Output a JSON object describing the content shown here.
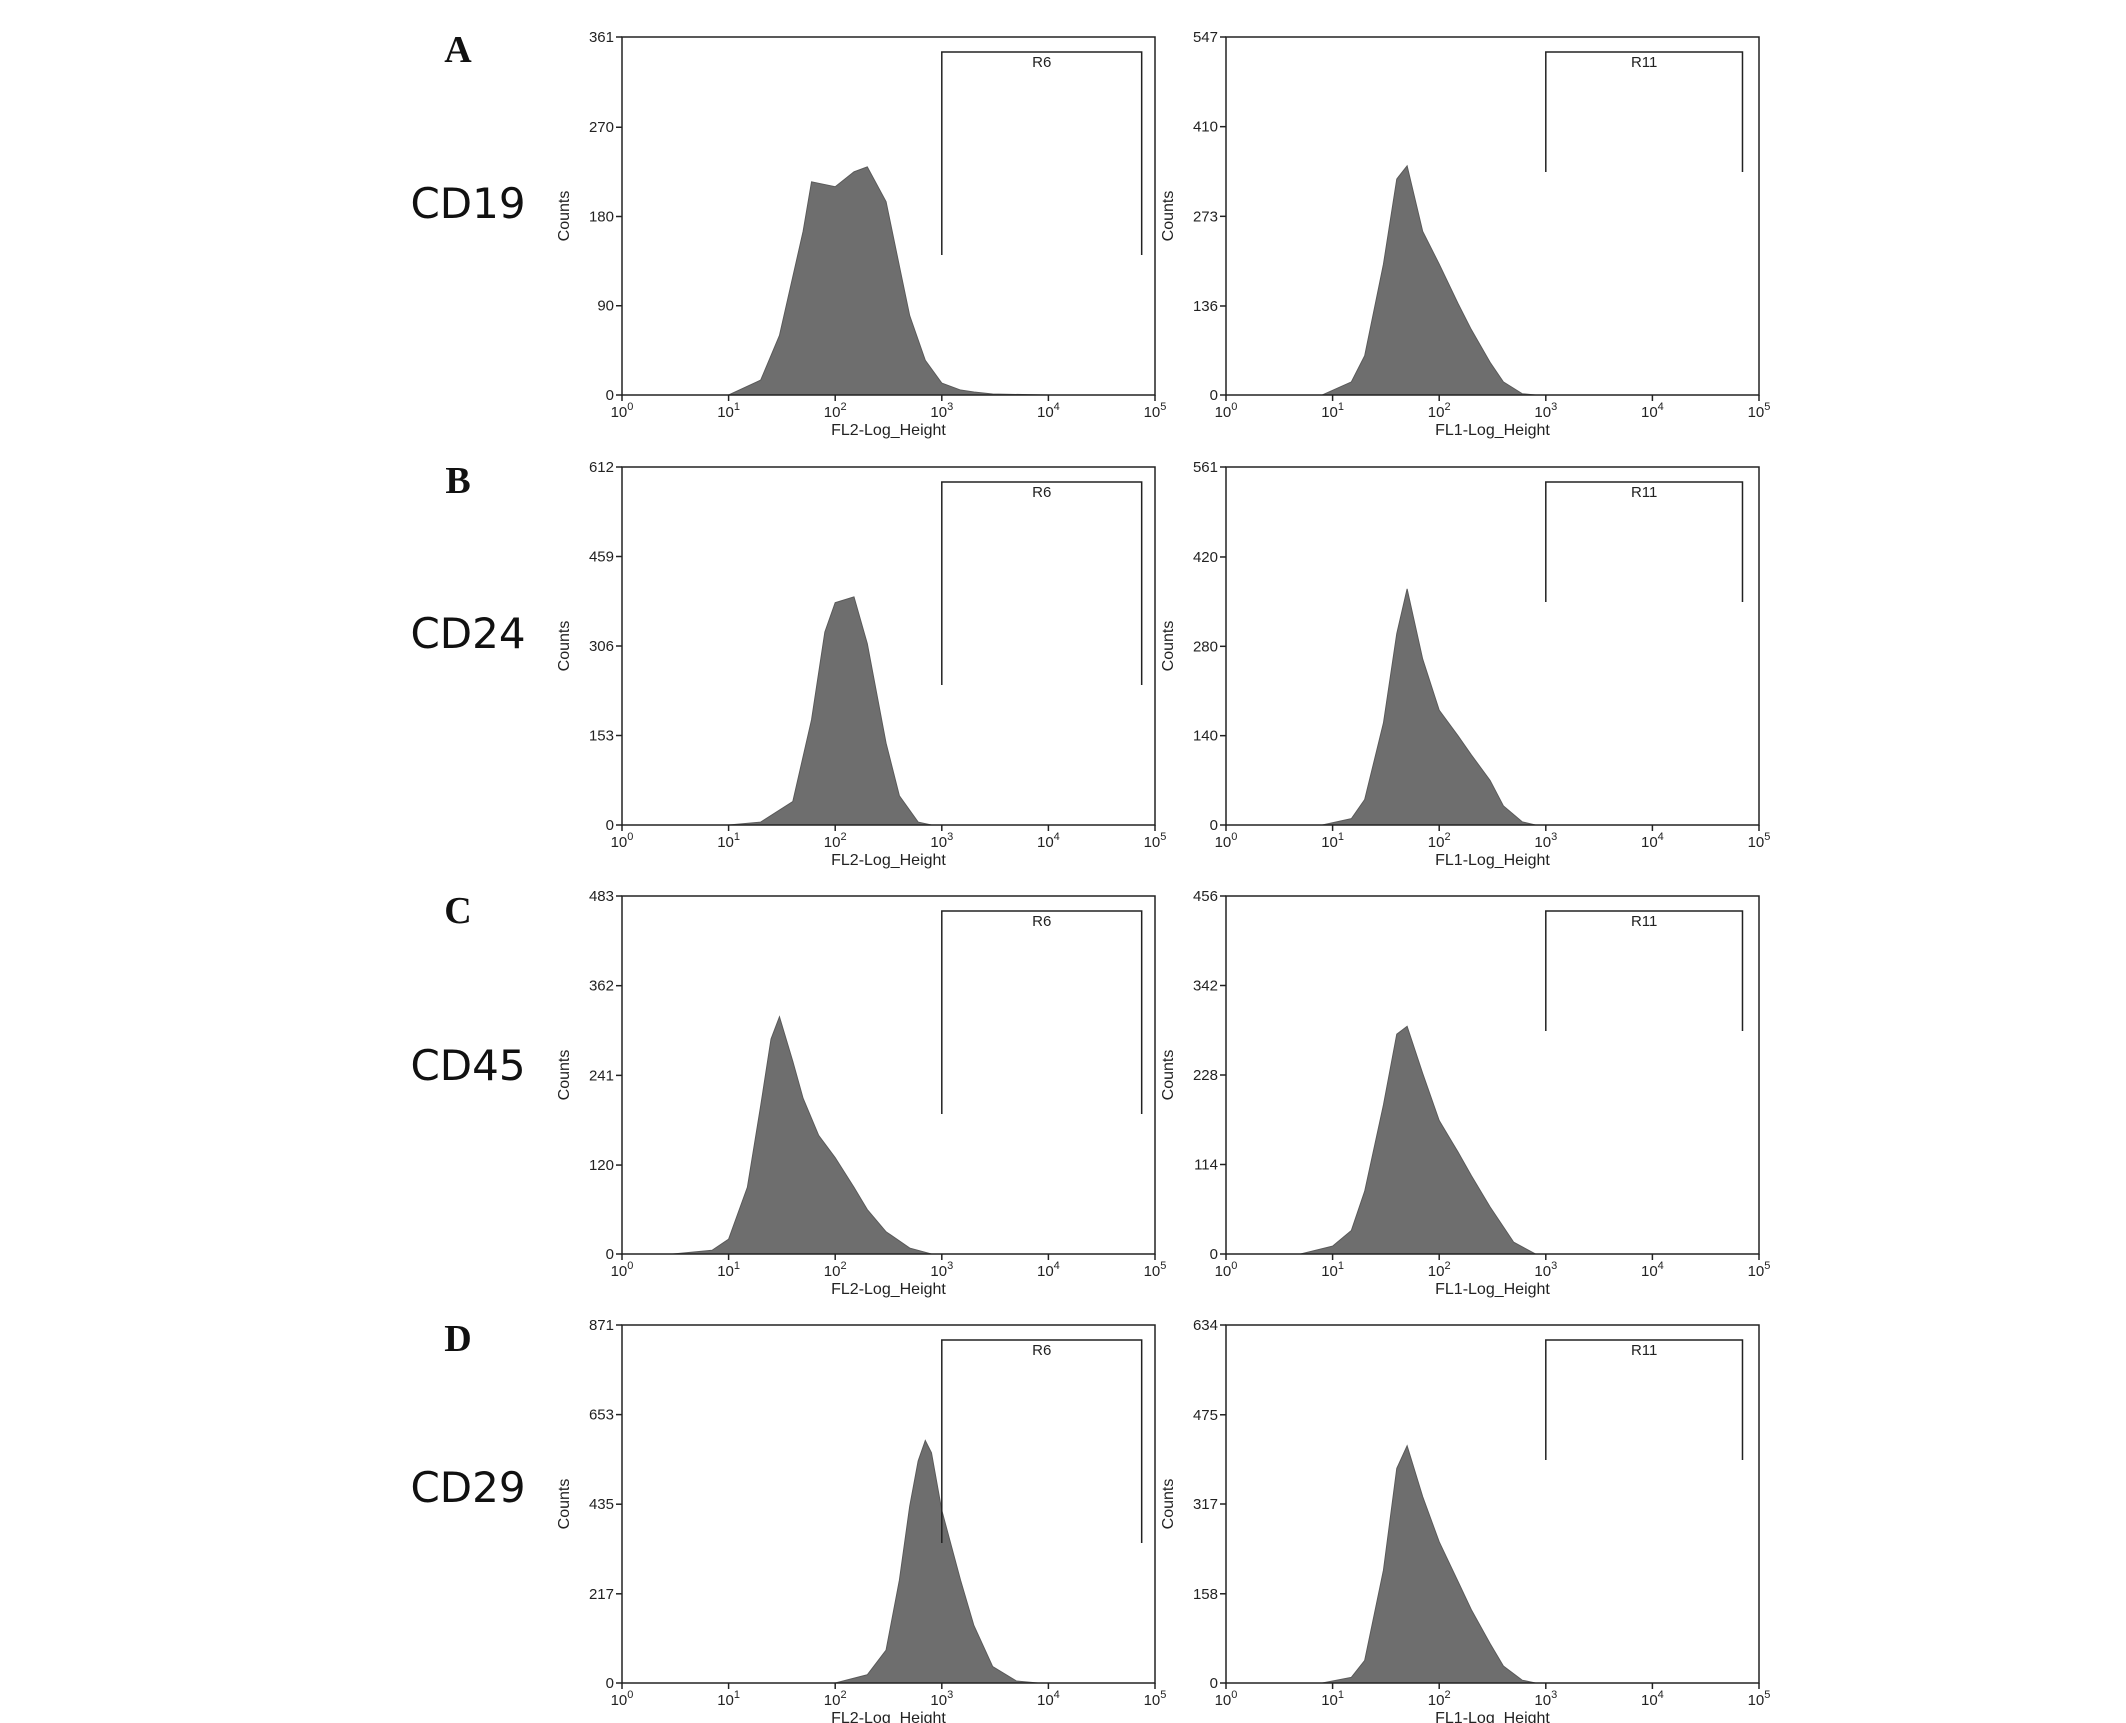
{
  "chart_data": [
    {
      "type": "area",
      "panel": "A",
      "marker": "CD19",
      "channel": "FL2",
      "xlabel": "FL2-Log_Height",
      "ylabel": "Counts",
      "xscale": "log",
      "xlim": [
        1,
        100000
      ],
      "xticks": [
        "10^0",
        "10^1",
        "10^2",
        "10^3",
        "10^4",
        "10^5"
      ],
      "ylim": [
        0,
        361
      ],
      "yticks": [
        0,
        90,
        180,
        270,
        361
      ],
      "gate": {
        "label": "R6",
        "range": [
          1000,
          75000
        ]
      },
      "x": [
        10,
        20,
        30,
        50,
        60,
        100,
        150,
        200,
        300,
        400,
        500,
        700,
        1000,
        1500,
        2000,
        3000,
        10000,
        30000
      ],
      "y": [
        0,
        15,
        60,
        165,
        215,
        210,
        225,
        230,
        195,
        130,
        80,
        35,
        12,
        5,
        3,
        1,
        0,
        0
      ]
    },
    {
      "type": "area",
      "panel": "A",
      "marker": "CD19",
      "channel": "FL1",
      "xlabel": "FL1-Log_Height",
      "ylabel": "Counts",
      "xscale": "log",
      "xlim": [
        1,
        100000
      ],
      "xticks": [
        "10^0",
        "10^1",
        "10^2",
        "10^3",
        "10^4",
        "10^5"
      ],
      "ylim": [
        0,
        547
      ],
      "yticks": [
        0,
        136,
        273,
        410,
        547
      ],
      "gate": {
        "label": "R11",
        "range": [
          1000,
          70000
        ]
      },
      "x": [
        8,
        15,
        20,
        30,
        40,
        50,
        70,
        100,
        150,
        200,
        300,
        400,
        600,
        800
      ],
      "y": [
        0,
        20,
        60,
        200,
        330,
        350,
        250,
        200,
        140,
        100,
        50,
        20,
        2,
        0
      ]
    },
    {
      "type": "area",
      "panel": "B",
      "marker": "CD24",
      "channel": "FL2",
      "xlabel": "FL2-Log_Height",
      "ylabel": "Counts",
      "xscale": "log",
      "xlim": [
        1,
        100000
      ],
      "xticks": [
        "10^0",
        "10^1",
        "10^2",
        "10^3",
        "10^4",
        "10^5"
      ],
      "ylim": [
        0,
        612
      ],
      "yticks": [
        0,
        153,
        306,
        459,
        612
      ],
      "gate": {
        "label": "R6",
        "range": [
          1000,
          75000
        ]
      },
      "x": [
        10,
        20,
        40,
        60,
        80,
        100,
        150,
        200,
        300,
        400,
        600,
        800
      ],
      "y": [
        0,
        5,
        40,
        180,
        330,
        380,
        390,
        310,
        140,
        50,
        5,
        0
      ]
    },
    {
      "type": "area",
      "panel": "B",
      "marker": "CD24",
      "channel": "FL1",
      "xlabel": "FL1-Log_Height",
      "ylabel": "Counts",
      "xscale": "log",
      "xlim": [
        1,
        100000
      ],
      "xticks": [
        "10^0",
        "10^1",
        "10^2",
        "10^3",
        "10^4",
        "10^5"
      ],
      "ylim": [
        0,
        561
      ],
      "yticks": [
        0,
        140,
        280,
        420,
        561
      ],
      "gate": {
        "label": "R11",
        "range": [
          1000,
          70000
        ]
      },
      "x": [
        8,
        15,
        20,
        30,
        40,
        50,
        70,
        100,
        150,
        200,
        300,
        400,
        600,
        800
      ],
      "y": [
        0,
        10,
        40,
        160,
        300,
        370,
        260,
        180,
        140,
        110,
        70,
        30,
        5,
        0
      ]
    },
    {
      "type": "area",
      "panel": "C",
      "marker": "CD45",
      "channel": "FL2",
      "xlabel": "FL2-Log_Height",
      "ylabel": "Counts",
      "xscale": "log",
      "xlim": [
        1,
        100000
      ],
      "xticks": [
        "10^0",
        "10^1",
        "10^2",
        "10^3",
        "10^4",
        "10^5"
      ],
      "ylim": [
        0,
        483
      ],
      "yticks": [
        0,
        120,
        241,
        362,
        483
      ],
      "gate": {
        "label": "R6",
        "range": [
          1000,
          75000
        ]
      },
      "x": [
        3,
        7,
        10,
        15,
        20,
        25,
        30,
        40,
        50,
        70,
        100,
        150,
        200,
        300,
        500,
        800
      ],
      "y": [
        0,
        5,
        20,
        90,
        200,
        290,
        320,
        260,
        210,
        160,
        130,
        90,
        60,
        30,
        8,
        0
      ]
    },
    {
      "type": "area",
      "panel": "C",
      "marker": "CD45",
      "channel": "FL1",
      "xlabel": "FL1-Log_Height",
      "ylabel": "Counts",
      "xscale": "log",
      "xlim": [
        1,
        100000
      ],
      "xticks": [
        "10^0",
        "10^1",
        "10^2",
        "10^3",
        "10^4",
        "10^5"
      ],
      "ylim": [
        0,
        456
      ],
      "yticks": [
        0,
        114,
        228,
        342,
        456
      ],
      "gate": {
        "label": "R11",
        "range": [
          1000,
          70000
        ]
      },
      "x": [
        5,
        10,
        15,
        20,
        30,
        40,
        50,
        70,
        100,
        150,
        200,
        300,
        500,
        800
      ],
      "y": [
        0,
        10,
        30,
        80,
        190,
        280,
        290,
        230,
        170,
        130,
        100,
        60,
        15,
        0
      ]
    },
    {
      "type": "area",
      "panel": "D",
      "marker": "CD29",
      "channel": "FL2",
      "xlabel": "FL2-Log_Height",
      "ylabel": "Counts",
      "xscale": "log",
      "xlim": [
        1,
        100000
      ],
      "xticks": [
        "10^0",
        "10^1",
        "10^2",
        "10^3",
        "10^4",
        "10^5"
      ],
      "ylim": [
        0,
        871
      ],
      "yticks": [
        0,
        217,
        435,
        653,
        871
      ],
      "gate": {
        "label": "R6",
        "range": [
          1000,
          75000
        ]
      },
      "x": [
        100,
        200,
        300,
        400,
        500,
        600,
        700,
        800,
        1000,
        1500,
        2000,
        3000,
        5000,
        8000
      ],
      "y": [
        0,
        20,
        80,
        250,
        430,
        540,
        590,
        560,
        420,
        250,
        140,
        40,
        5,
        0
      ]
    },
    {
      "type": "area",
      "panel": "D",
      "marker": "CD29",
      "channel": "FL1",
      "xlabel": "FL1-Log_Height",
      "ylabel": "Counts",
      "xscale": "log",
      "xlim": [
        1,
        100000
      ],
      "xticks": [
        "10^0",
        "10^1",
        "10^2",
        "10^3",
        "10^4",
        "10^5"
      ],
      "ylim": [
        0,
        634
      ],
      "yticks": [
        0,
        158,
        317,
        475,
        634
      ],
      "gate": {
        "label": "R11",
        "range": [
          1000,
          70000
        ]
      },
      "x": [
        8,
        15,
        20,
        30,
        40,
        50,
        70,
        100,
        150,
        200,
        300,
        400,
        600,
        800
      ],
      "y": [
        0,
        10,
        40,
        200,
        380,
        420,
        330,
        250,
        180,
        130,
        70,
        30,
        5,
        0
      ]
    }
  ]
}
